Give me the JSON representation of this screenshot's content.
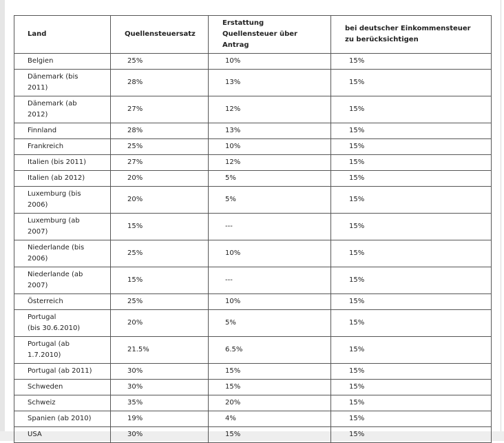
{
  "table": {
    "headers": [
      "Land",
      "Quellensteuersatz",
      "Erstattung\nQuellensteuer über\nAntrag",
      "bei deutscher Einkommensteuer\nzu berücksichtigen"
    ],
    "rows": [
      [
        "Belgien",
        "25%",
        "10%",
        "15%"
      ],
      [
        "Dänemark (bis\n2011)",
        "28%",
        "13%",
        "15%"
      ],
      [
        "Dänemark (ab\n2012)",
        "27%",
        "12%",
        "15%"
      ],
      [
        "Finnland",
        "28%",
        "13%",
        "15%"
      ],
      [
        "Frankreich",
        "25%",
        "10%",
        "15%"
      ],
      [
        "Italien (bis 2011)",
        "27%",
        "12%",
        "15%"
      ],
      [
        "Italien (ab 2012)",
        "20%",
        "5%",
        "15%"
      ],
      [
        "Luxemburg (bis\n2006)",
        "20%",
        "5%",
        "15%"
      ],
      [
        "Luxemburg (ab\n2007)",
        "15%",
        "---",
        "15%"
      ],
      [
        "Niederlande (bis\n2006)",
        "25%",
        "10%",
        "15%"
      ],
      [
        "Niederlande (ab\n2007)",
        "15%",
        "---",
        "15%"
      ],
      [
        "Österreich",
        "25%",
        "10%",
        "15%"
      ],
      [
        "Portugal\n(bis 30.6.2010)",
        "20%",
        "5%",
        "15%"
      ],
      [
        "Portugal (ab\n1.7.2010)",
        "21.5%",
        "6.5%",
        "15%"
      ],
      [
        "Portugal (ab 2011)",
        "30%",
        "15%",
        "15%"
      ],
      [
        "Schweden",
        "30%",
        "15%",
        "15%"
      ],
      [
        "Schweiz",
        "35%",
        "20%",
        "15%"
      ],
      [
        "Spanien (ab 2010)",
        "19%",
        "4%",
        "15%"
      ],
      [
        "USA",
        "30%",
        "15%",
        "15%"
      ]
    ]
  }
}
